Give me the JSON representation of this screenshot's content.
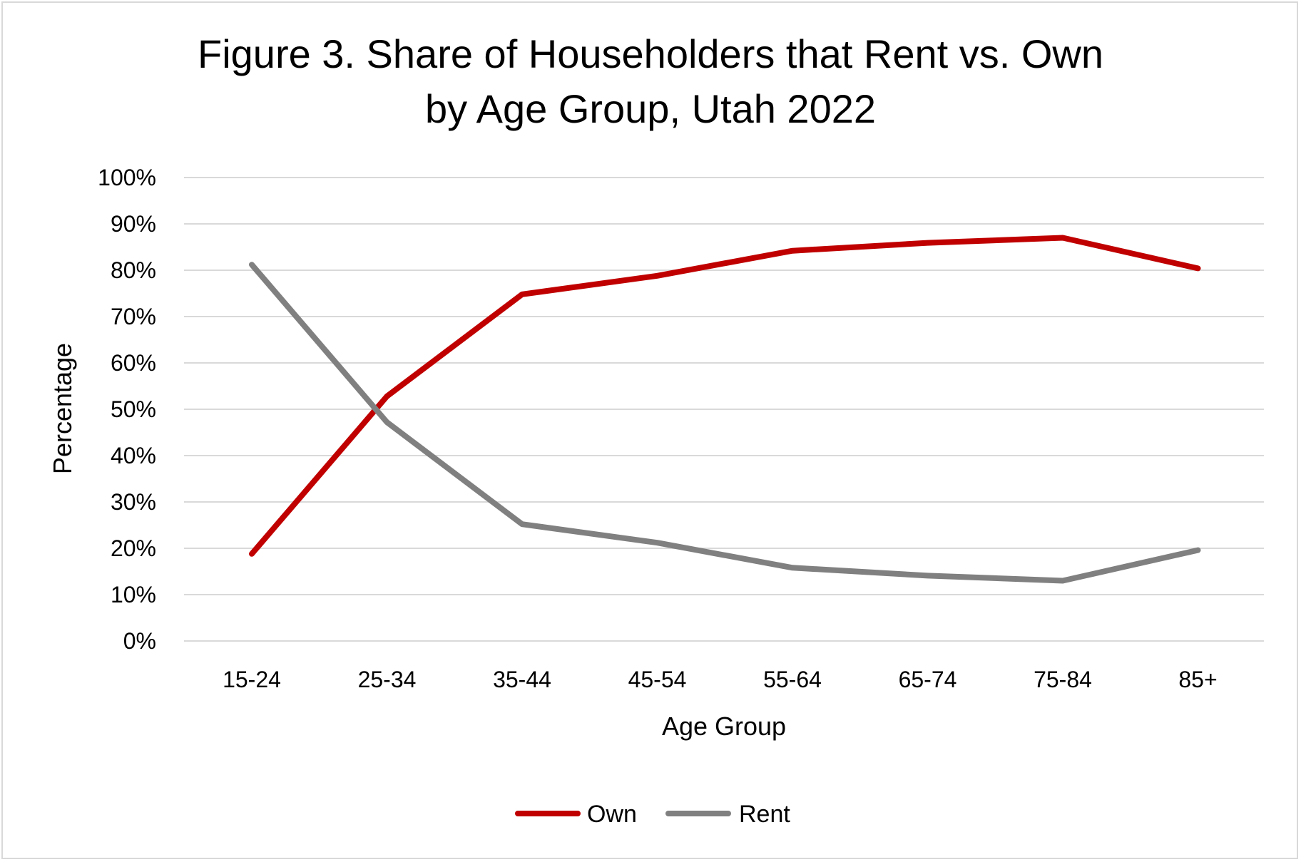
{
  "chart_data": {
    "type": "line",
    "title": "Figure 3. Share of Householders that Rent vs. Own",
    "subtitle": "by Age Group, Utah 2022",
    "xlabel": "Age Group",
    "ylabel": "Percentage",
    "categories": [
      "15-24",
      "25-34",
      "35-44",
      "45-54",
      "55-64",
      "65-74",
      "75-84",
      "85+"
    ],
    "ylim": [
      0,
      100
    ],
    "yticks": [
      "0%",
      "10%",
      "20%",
      "30%",
      "40%",
      "50%",
      "60%",
      "70%",
      "80%",
      "90%",
      "100%"
    ],
    "grid": true,
    "legend_position": "bottom",
    "series": [
      {
        "name": "Own",
        "color": "#c00000",
        "values": [
          18.8,
          52.8,
          74.8,
          78.8,
          84.2,
          85.9,
          87.0,
          80.4
        ]
      },
      {
        "name": "Rent",
        "color": "#808080",
        "values": [
          81.2,
          47.2,
          25.2,
          21.2,
          15.8,
          14.1,
          13.0,
          19.6
        ]
      }
    ]
  }
}
